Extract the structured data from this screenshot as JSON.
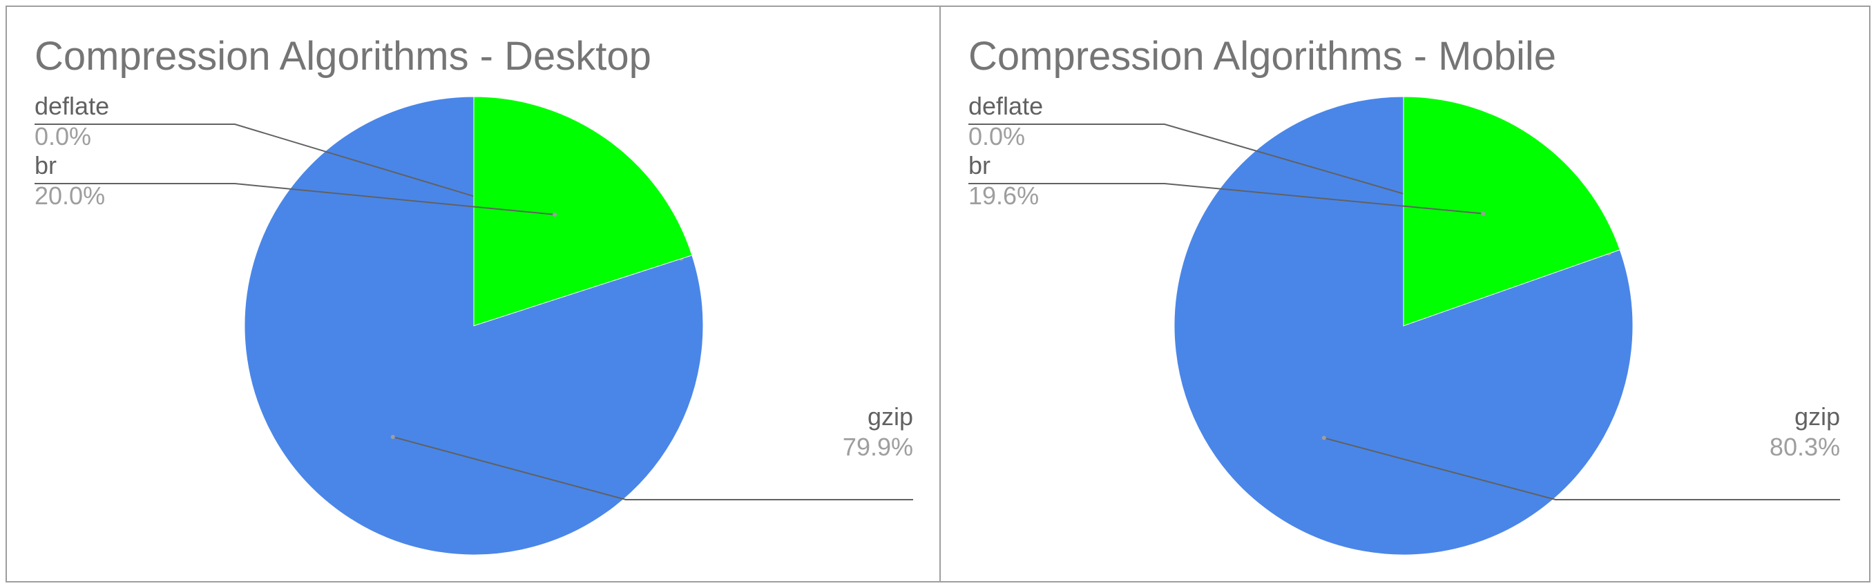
{
  "chart_data": [
    {
      "type": "pie",
      "title": "Compression Algorithms - Desktop",
      "slices": [
        {
          "label": "gzip",
          "value": 79.9,
          "display": "79.9%",
          "color": "#4a86e8"
        },
        {
          "label": "deflate",
          "value": 0.0,
          "display": "0.0%",
          "color": "#ff9900"
        },
        {
          "label": "br",
          "value": 20.0,
          "display": "20.0%",
          "color": "#00ff00"
        }
      ],
      "legend": "none",
      "label_style": "name and percentage with leader lines"
    },
    {
      "type": "pie",
      "title": "Compression Algorithms - Mobile",
      "slices": [
        {
          "label": "gzip",
          "value": 80.3,
          "display": "80.3%",
          "color": "#4a86e8"
        },
        {
          "label": "deflate",
          "value": 0.0,
          "display": "0.0%",
          "color": "#ff9900"
        },
        {
          "label": "br",
          "value": 19.6,
          "display": "19.6%",
          "color": "#00ff00"
        }
      ],
      "legend": "none",
      "label_style": "name and percentage with leader lines"
    }
  ]
}
